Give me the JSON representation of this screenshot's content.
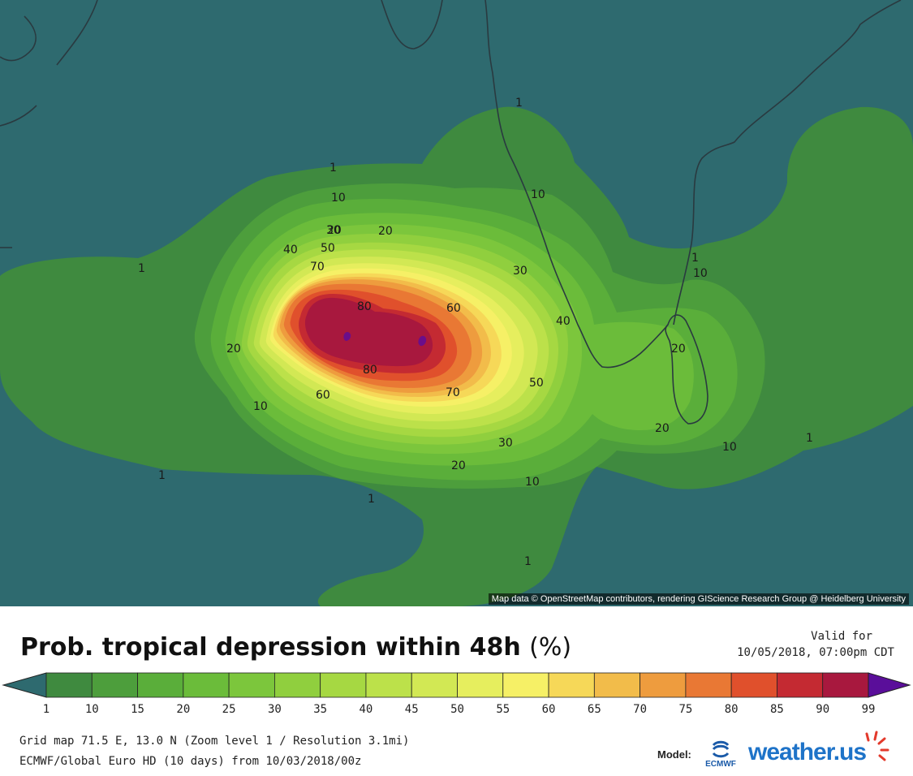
{
  "title": {
    "text": "Prob. tropical depression within 48h",
    "unit": "(%)"
  },
  "valid": {
    "label": "Valid for",
    "datetime": "10/05/2018, 07:00pm CDT"
  },
  "attribution": "Map data © OpenStreetMap contributors, rendering GIScience Research Group @ Heidelberg University",
  "scale": {
    "ticks": [
      "1",
      "10",
      "15",
      "20",
      "25",
      "30",
      "35",
      "40",
      "45",
      "50",
      "55",
      "60",
      "65",
      "70",
      "75",
      "80",
      "85",
      "90",
      "99"
    ],
    "colors": [
      "#3f8a3f",
      "#4d9e3c",
      "#5aae3a",
      "#6bbc3a",
      "#7cc63c",
      "#90cf3e",
      "#a6d842",
      "#bce14a",
      "#d2e854",
      "#e6ee5e",
      "#f6f066",
      "#f6d858",
      "#f2bc4a",
      "#ee9c3e",
      "#e97834",
      "#e0502c",
      "#c42a32",
      "#a8183e",
      "#8c1050",
      "#6a0e8a"
    ],
    "under_color": "#2e6a6f",
    "over_color": "#5a0e9a"
  },
  "contour_labels": [
    "1",
    "1",
    "1",
    "1",
    "1",
    "1",
    "1",
    "1",
    "10",
    "10",
    "10",
    "10",
    "10",
    "10",
    "20",
    "20",
    "20",
    "20",
    "20",
    "20",
    "30",
    "30",
    "30",
    "40",
    "40",
    "50",
    "50",
    "60",
    "60",
    "70",
    "70",
    "80",
    "80"
  ],
  "grid_info": "Grid map 71.5 E, 13.0 N (Zoom level 1 / Resolution 3.1mi)",
  "model_info": "ECMWF/Global Euro HD (10 days) from 10/03/2018/00z",
  "model_label": "Model:",
  "ecmwf_logo_text": "ECMWF",
  "weather_logo_text": "weather.us",
  "colors": {
    "sea": "#2e6a6f",
    "coast": "#2a3a40"
  }
}
